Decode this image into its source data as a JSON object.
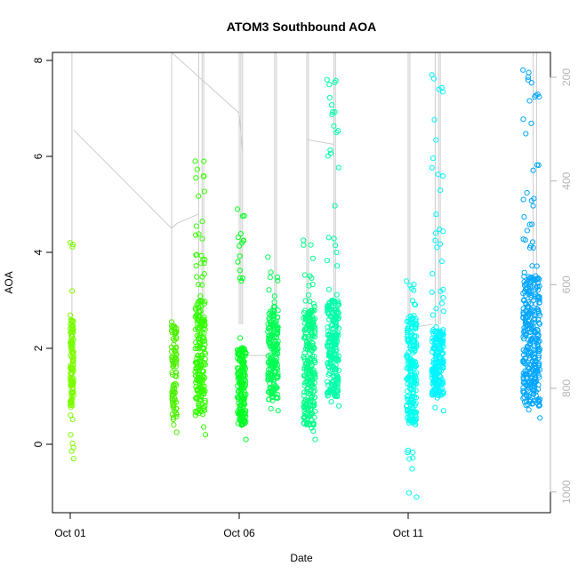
{
  "chart_data": {
    "type": "scatter",
    "title": "ATOM3 Southbound AOA",
    "xlabel": "Date",
    "ylabel": "AOA",
    "x_unit": "days",
    "xlim": [
      0.0,
      15.0
    ],
    "ylim": [
      -1.4,
      8.2
    ],
    "y2lim": [
      1040,
      152
    ],
    "x_ticks": [
      {
        "value": 0,
        "label": "Oct 01"
      },
      {
        "value": 5,
        "label": "Oct 06"
      },
      {
        "value": 10,
        "label": "Oct 11"
      }
    ],
    "y_ticks": [
      0,
      2,
      4,
      6,
      8
    ],
    "y2_ticks": [
      200,
      400,
      600,
      800,
      1000
    ],
    "grid": false,
    "legend": "none",
    "colors": {
      "overlay_line": "#cccccc",
      "right_axis": "#b5b5b5",
      "frame": "#000000"
    },
    "series": [
      {
        "x": 0.0,
        "x_end": 0.1,
        "ymin": -0.3,
        "ymax": 4.2,
        "core": [
          0.8,
          2.6
        ],
        "color": "#7cfc00",
        "n": 130
      },
      {
        "x": 3.0,
        "x_end": 3.15,
        "ymin": 0.25,
        "ymax": 2.55,
        "core": [
          0.4,
          2.5
        ],
        "color": "#4cf000",
        "n": 90
      },
      {
        "x": 3.7,
        "x_end": 4.0,
        "ymin": 0.2,
        "ymax": 5.9,
        "core": [
          0.6,
          3.0
        ],
        "color": "#33ff00",
        "n": 220
      },
      {
        "x": 4.95,
        "x_end": 5.2,
        "ymin": 0.1,
        "ymax": 4.9,
        "core": [
          0.4,
          2.0
        ],
        "color": "#00ff22",
        "n": 170
      },
      {
        "x": 5.85,
        "x_end": 6.15,
        "ymin": 0.7,
        "ymax": 3.9,
        "core": [
          0.9,
          2.8
        ],
        "color": "#00ff55",
        "n": 200
      },
      {
        "x": 6.9,
        "x_end": 7.25,
        "ymin": 0.1,
        "ymax": 4.25,
        "core": [
          0.4,
          2.8
        ],
        "color": "#00ff88",
        "n": 240
      },
      {
        "x": 7.6,
        "x_end": 7.95,
        "ymin": 0.8,
        "ymax": 7.6,
        "core": [
          1.0,
          3.0
        ],
        "color": "#00ffaa",
        "n": 240
      },
      {
        "x": 9.95,
        "x_end": 10.25,
        "ymin": -1.1,
        "ymax": 3.4,
        "core": [
          0.4,
          2.7
        ],
        "color": "#00ffee",
        "n": 220
      },
      {
        "x": 10.7,
        "x_end": 11.05,
        "ymin": 0.7,
        "ymax": 7.7,
        "core": [
          1.0,
          2.4
        ],
        "color": "#00f5ff",
        "n": 230
      },
      {
        "x": 13.4,
        "x_end": 13.9,
        "ymin": 0.55,
        "ymax": 7.8,
        "core": [
          0.8,
          3.5
        ],
        "color": "#00a6ff",
        "n": 340
      }
    ],
    "overlay_lines": [
      {
        "points": [
          [
            0.1,
            6.55
          ],
          [
            3.0,
            4.5
          ],
          [
            3.15,
            4.6
          ],
          [
            3.8,
            4.8
          ]
        ]
      },
      {
        "points": [
          [
            3.0,
            8.2
          ],
          [
            5.0,
            6.9
          ],
          [
            5.1,
            6.1
          ]
        ]
      },
      {
        "points": [
          [
            7.0,
            6.35
          ],
          [
            7.8,
            6.25
          ]
        ]
      },
      {
        "points": [
          [
            5.2,
            1.85
          ],
          [
            5.85,
            1.85
          ]
        ]
      },
      {
        "points": [
          [
            10.25,
            2.45
          ],
          [
            10.7,
            2.5
          ]
        ]
      }
    ],
    "overlay_spike_x": [
      0.05,
      3.0,
      3.8,
      3.9,
      3.95,
      5.0,
      5.05,
      5.1,
      6.05,
      6.1,
      7.0,
      7.05,
      7.8,
      7.85,
      10.0,
      10.05,
      10.8,
      10.9,
      10.95,
      13.7,
      13.8
    ]
  }
}
